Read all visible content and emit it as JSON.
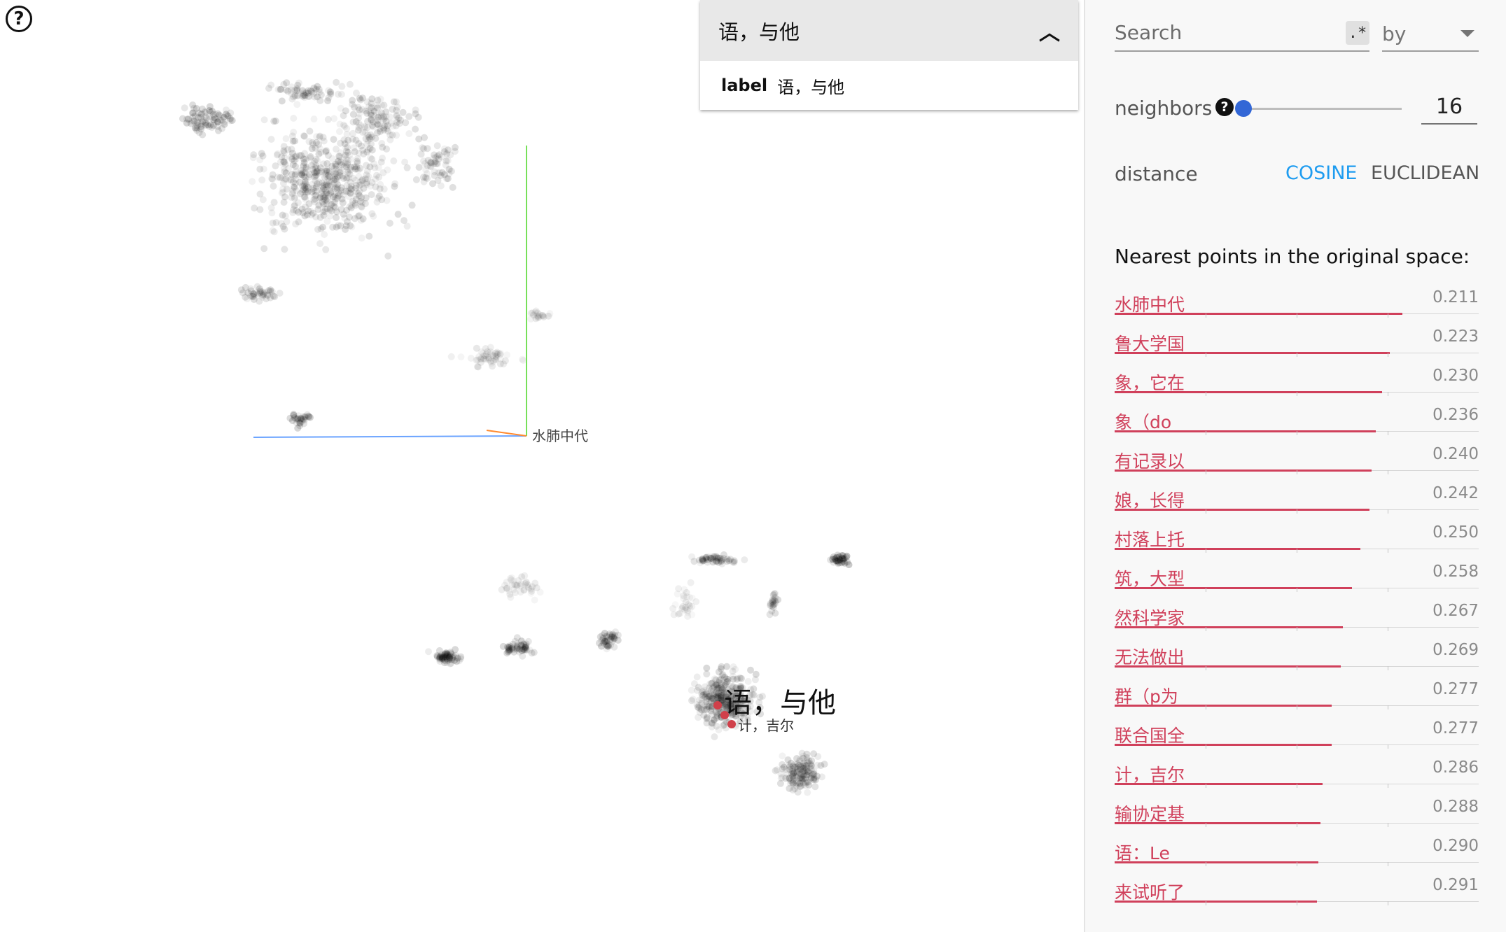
{
  "help_icon": "help-circle-icon",
  "scatter": {
    "hover_label": "语，与他",
    "sublabel": "计，吉尔",
    "axis_label": "水肺中代",
    "colors": {
      "point": "#000000",
      "highlight": "#d0404a",
      "axis_x": "#6aa3ff",
      "axis_y": "#77e05a",
      "axis_z": "#ff8a30"
    }
  },
  "selected": {
    "title": "语，与他",
    "collapse_icon": "chevron-up-icon",
    "field_key": "label",
    "field_value": "语，与他"
  },
  "panel": {
    "search_placeholder": "Search",
    "regex_label": ".*",
    "by_label": "by",
    "by_icon": "caret-down-icon",
    "neighbors_label": "neighbors",
    "neighbors_help_icon": "help-icon",
    "neighbors_value": "16",
    "neighbors_slider_fraction": 0.0,
    "distance_label": "distance",
    "distance_cosine": "COSINE",
    "distance_euclidean": "EUCLIDEAN",
    "distance_selected": "COSINE",
    "nearest_title": "Nearest points in the original space:",
    "accent_color": "#d0405b",
    "neighbors": [
      {
        "label": "水肺中代",
        "value": "0.211"
      },
      {
        "label": "鲁大学国",
        "value": "0.223"
      },
      {
        "label": "象，它在",
        "value": "0.230"
      },
      {
        "label": "象（do",
        "value": "0.236"
      },
      {
        "label": "有记录以",
        "value": "0.240"
      },
      {
        "label": "娘，长得",
        "value": "0.242"
      },
      {
        "label": "村落上托",
        "value": "0.250"
      },
      {
        "label": "筑，大型",
        "value": "0.258"
      },
      {
        "label": "然科学家",
        "value": "0.267"
      },
      {
        "label": "无法做出",
        "value": "0.269"
      },
      {
        "label": "群（p为",
        "value": "0.277"
      },
      {
        "label": "联合国全",
        "value": "0.277"
      },
      {
        "label": "计，吉尔",
        "value": "0.286"
      },
      {
        "label": "输协定基",
        "value": "0.288"
      },
      {
        "label": "语：Le",
        "value": "0.290"
      },
      {
        "label": "来试听了",
        "value": "0.291"
      }
    ]
  }
}
